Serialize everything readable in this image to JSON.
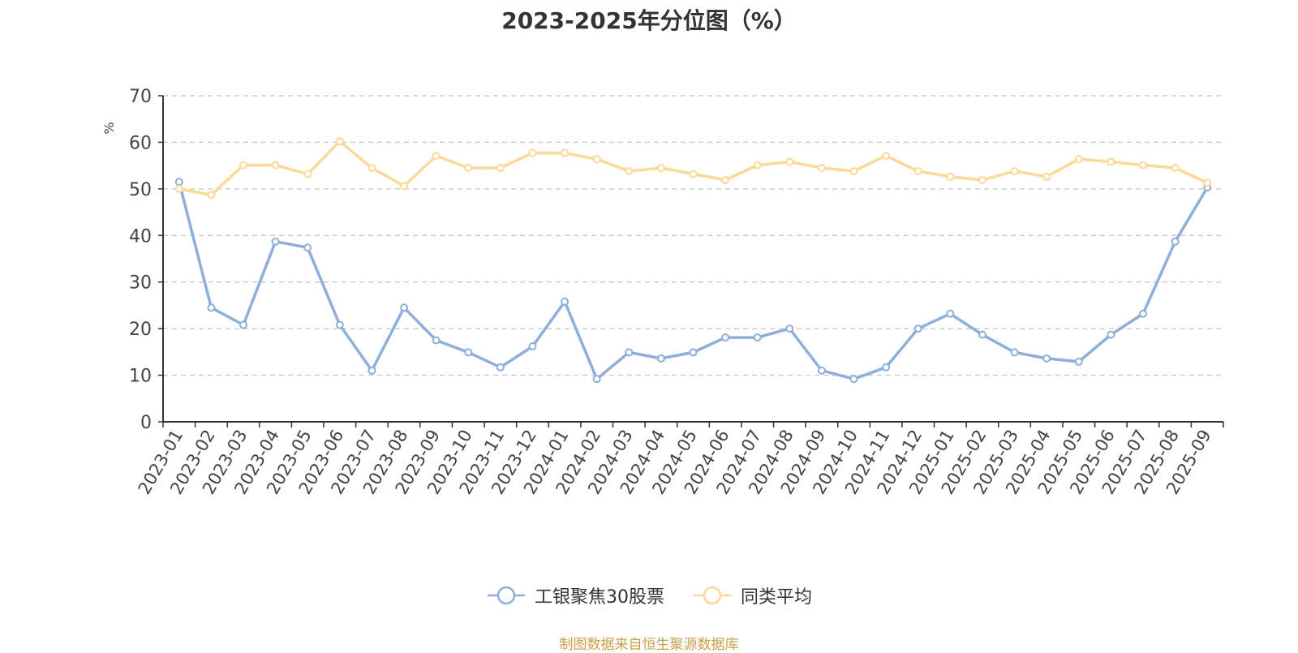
{
  "title": "2023-2025年分位图（%）",
  "source_note": "制图数据来自恒生聚源数据库",
  "colors": {
    "series_1": "#8eafd9",
    "series_2": "#fbd996",
    "source_note": "#c9a04a",
    "ylabel": "#e0201b",
    "grid": "#cccccc"
  },
  "chart_data": {
    "type": "line",
    "title": "2023-2025年分位图（%）",
    "xlabel": "",
    "ylabel": "%",
    "ylim": [
      0,
      70
    ],
    "yticks": [
      "0",
      "10",
      "20",
      "30",
      "40",
      "50",
      "60",
      "70"
    ],
    "grid": "horizontal dashed",
    "legend_position": "bottom",
    "categories": [
      "2023-01",
      "2023-02",
      "2023-03",
      "2023-04",
      "2023-05",
      "2023-06",
      "2023-07",
      "2023-08",
      "2023-09",
      "2023-10",
      "2023-11",
      "2023-12",
      "2024-01",
      "2024-02",
      "2024-03",
      "2024-04",
      "2024-05",
      "2024-06",
      "2024-07",
      "2024-08",
      "2024-09",
      "2024-10",
      "2024-11",
      "2024-12",
      "2025-01",
      "2025-02",
      "2025-03",
      "2025-04",
      "2025-05",
      "2025-06",
      "2025-07",
      "2025-08",
      "2025-09"
    ],
    "series": [
      {
        "name": "工银聚焦30股票",
        "values": [
          51.5,
          24.5,
          20.8,
          38.7,
          37.4,
          20.8,
          11.0,
          24.5,
          17.5,
          14.9,
          11.7,
          16.2,
          25.8,
          9.2,
          14.9,
          13.6,
          14.9,
          18.1,
          18.1,
          20.0,
          11.0,
          9.2,
          11.7,
          20.0,
          23.2,
          18.7,
          14.9,
          13.6,
          12.9,
          18.7,
          23.2,
          38.7,
          50.3
        ]
      },
      {
        "name": "同类平均",
        "values": [
          50.0,
          48.7,
          55.1,
          55.1,
          53.2,
          60.2,
          54.5,
          50.6,
          57.1,
          54.5,
          54.5,
          57.7,
          57.7,
          56.4,
          53.8,
          54.5,
          53.2,
          51.9,
          55.1,
          55.8,
          54.5,
          53.8,
          57.1,
          53.8,
          52.6,
          51.9,
          53.8,
          52.6,
          56.4,
          55.8,
          55.1,
          54.5,
          51.3
        ]
      }
    ]
  }
}
